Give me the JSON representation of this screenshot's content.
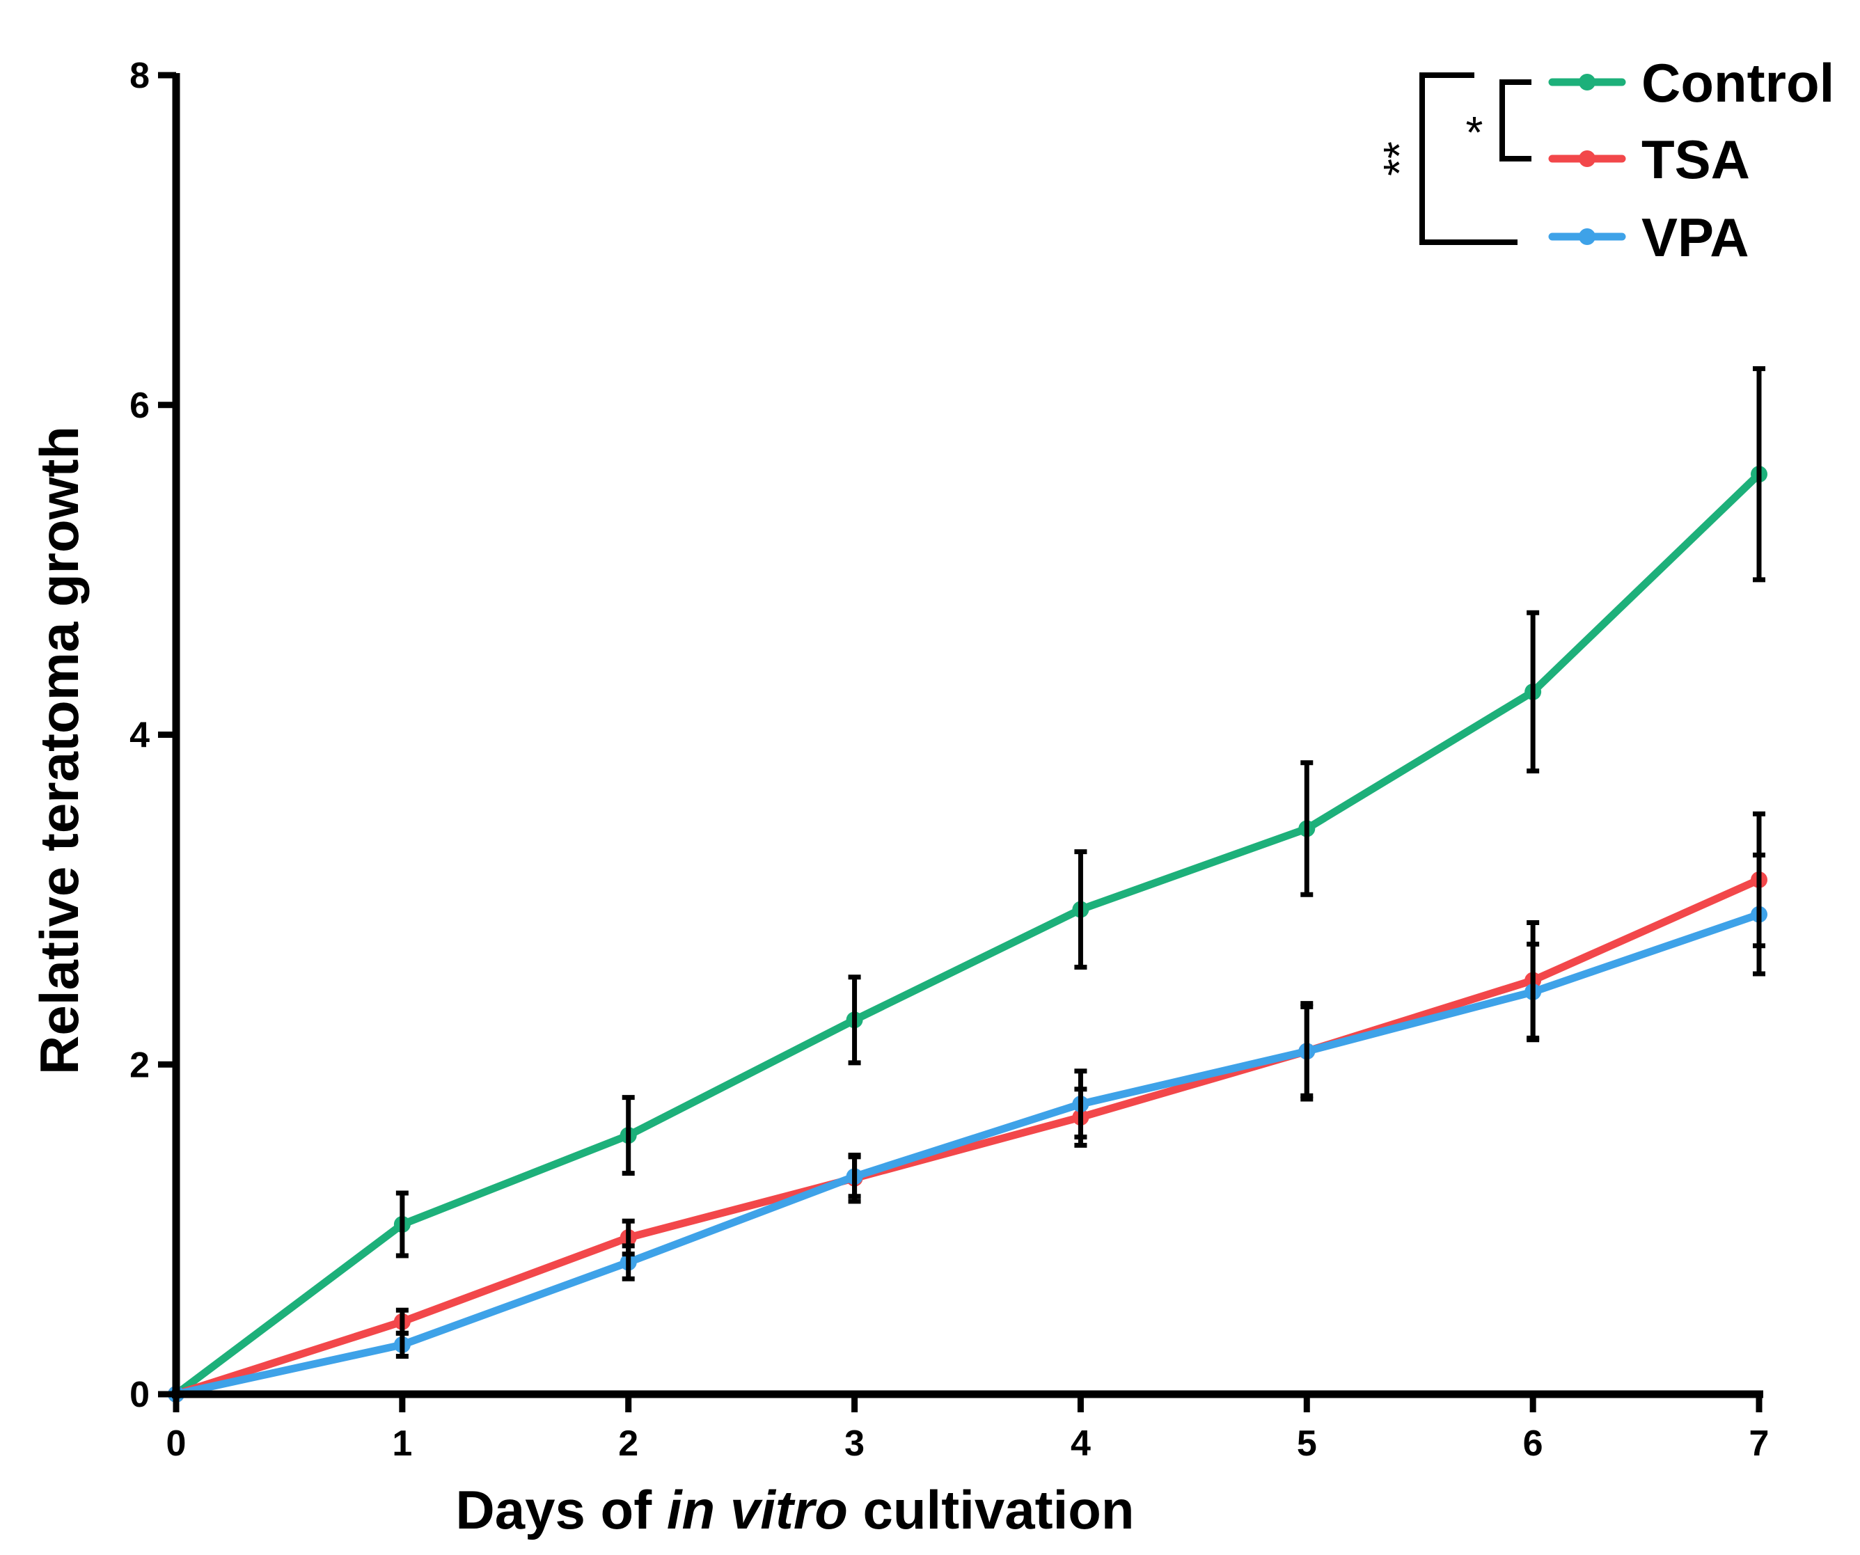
{
  "chart_data": {
    "type": "line",
    "title": "",
    "xlabel_parts": [
      "Days of ",
      "in vitro",
      " cultivation"
    ],
    "xlabel": "Days of in vitro cultivation",
    "ylabel": "Relative teratoma growth",
    "xlim": [
      0,
      7
    ],
    "ylim": [
      0,
      8
    ],
    "x_ticks": [
      "0",
      "1",
      "2",
      "3",
      "4",
      "5",
      "6",
      "7"
    ],
    "y_ticks": [
      "0",
      "2",
      "4",
      "6",
      "8"
    ],
    "x": [
      0,
      1,
      2,
      3,
      4,
      5,
      6,
      7
    ],
    "series": [
      {
        "name": "Control",
        "color": "#1db07a",
        "values": [
          0,
          1.03,
          1.57,
          2.27,
          2.94,
          3.43,
          4.26,
          5.58
        ],
        "error": [
          0,
          0.19,
          0.23,
          0.26,
          0.35,
          0.4,
          0.48,
          0.64
        ]
      },
      {
        "name": "TSA",
        "color": "#f2474a",
        "values": [
          0,
          0.44,
          0.95,
          1.31,
          1.68,
          2.08,
          2.51,
          3.12
        ],
        "error": [
          0,
          0.07,
          0.1,
          0.14,
          0.17,
          0.27,
          0.35,
          0.4
        ]
      },
      {
        "name": "VPA",
        "color": "#3ea2e8",
        "values": [
          0,
          0.3,
          0.8,
          1.32,
          1.76,
          2.08,
          2.44,
          2.91
        ],
        "error": [
          0,
          0.07,
          0.1,
          0.12,
          0.2,
          0.29,
          0.29,
          0.36
        ]
      }
    ],
    "legend_position": "top-right",
    "significance": [
      {
        "groups": [
          "Control",
          "TSA"
        ],
        "label": "*"
      },
      {
        "groups": [
          "Control",
          "VPA"
        ],
        "label": "**"
      }
    ]
  }
}
